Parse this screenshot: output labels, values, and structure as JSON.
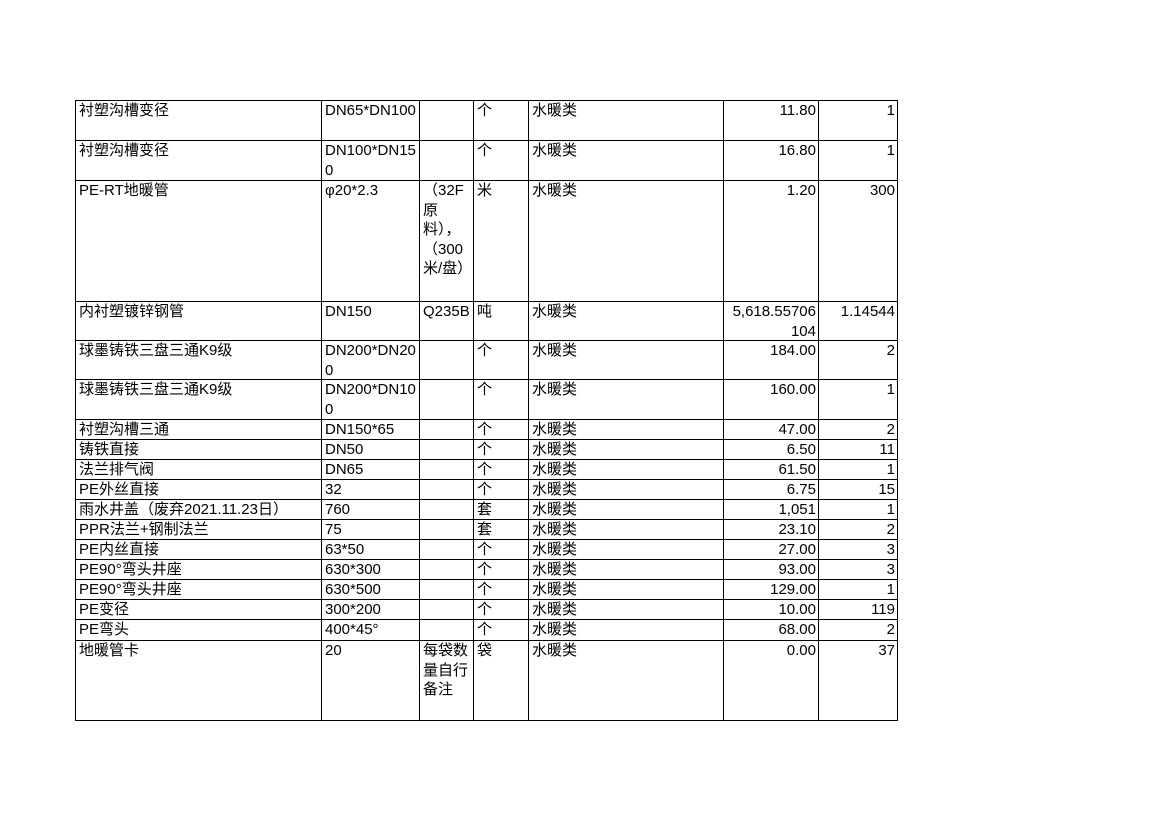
{
  "table": {
    "rows": [
      [
        "衬塑沟槽变径",
        "DN65*DN100",
        null,
        "个",
        "水暖类",
        "11.80",
        "1"
      ],
      [
        "衬塑沟槽变径",
        "DN100*DN150",
        null,
        "个",
        "水暖类",
        "16.80",
        "1"
      ],
      [
        "PE-RT地暖管",
        "φ20*2.3",
        "（32F原料），（300米/盘）",
        "米",
        "水暖类",
        "1.20",
        "300"
      ],
      [
        "内衬塑镀锌钢管",
        "DN150",
        "Q235B",
        "吨",
        "水暖类",
        "5,618.55706104",
        "1.14544"
      ],
      [
        "球墨铸铁三盘三通K9级",
        "DN200*DN200",
        null,
        "个",
        "水暖类",
        "184.00",
        "2"
      ],
      [
        "球墨铸铁三盘三通K9级",
        "DN200*DN100",
        null,
        "个",
        "水暖类",
        "160.00",
        "1"
      ],
      [
        "衬塑沟槽三通",
        "DN150*65",
        null,
        "个",
        "水暖类",
        "47.00",
        "2"
      ],
      [
        "铸铁直接",
        "DN50",
        null,
        "个",
        "水暖类",
        "6.50",
        "11"
      ],
      [
        "法兰排气阀",
        "DN65",
        null,
        "个",
        "水暖类",
        "61.50",
        "1"
      ],
      [
        "PE外丝直接",
        "32",
        null,
        "个",
        "水暖类",
        "6.75",
        "15"
      ],
      [
        "雨水井盖（废弃2021.11.23日）",
        "760",
        null,
        "套",
        "水暖类",
        "1,051",
        "1"
      ],
      [
        "PPR法兰+钢制法兰",
        "75",
        null,
        "套",
        "水暖类",
        "23.10",
        "2"
      ],
      [
        "PE内丝直接",
        "63*50",
        null,
        "个",
        "水暖类",
        "27.00",
        "3"
      ],
      [
        "PE90°弯头井座",
        "630*300",
        null,
        "个",
        "水暖类",
        "93.00",
        "3"
      ],
      [
        "PE90°弯头井座",
        "630*500",
        null,
        "个",
        "水暖类",
        "129.00",
        "1"
      ],
      [
        "PE变径",
        "300*200",
        null,
        "个",
        "水暖类",
        "10.00",
        "119"
      ],
      [
        "PE弯头",
        "400*45°",
        null,
        "个",
        "水暖类",
        "68.00",
        "2"
      ],
      [
        "地暖管卡",
        "20",
        "每袋数量自行备注",
        "袋",
        "水暖类",
        "0.00",
        "37"
      ]
    ]
  }
}
